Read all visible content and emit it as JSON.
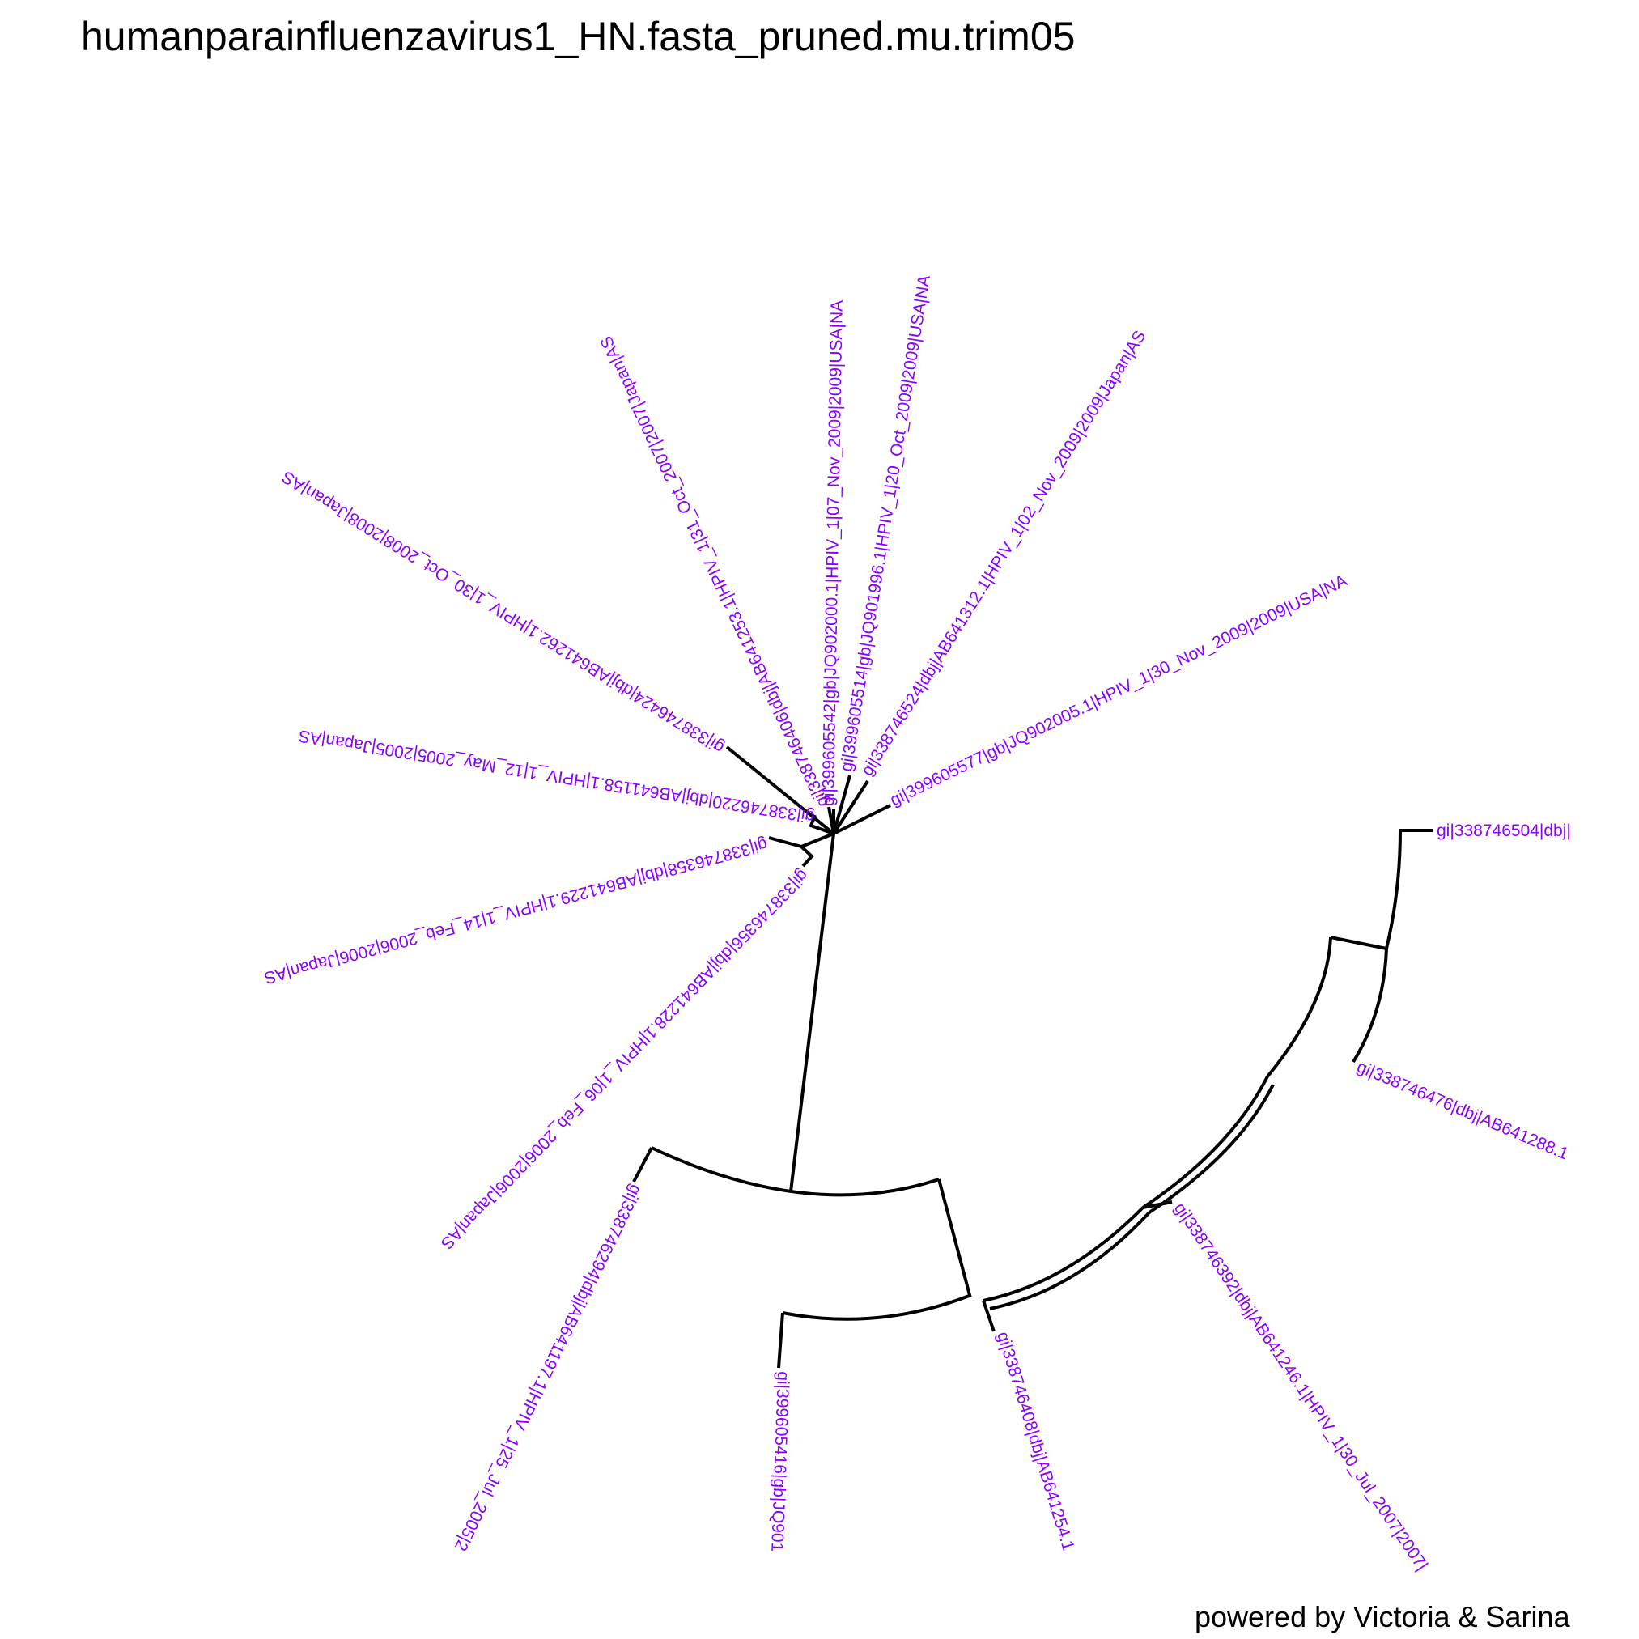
{
  "title": "humanparainfluenzavirus1_HN.fasta_pruned.mu.trim05",
  "footer": "powered by Victoria & Sarina",
  "colors": {
    "tip_label": "#8B00FF",
    "branch": "#000000",
    "background": "#FFFFFF"
  },
  "tips": [
    "gi|338746504|dbj|",
    "gi|338746476|dbj|AB641288.1",
    "gi|338746392|dbj|AB641246.1|HPIV_1|30_Jul_2007|2007|",
    "gi|338746408|dbj|AB641254.1",
    "gi|399605416|gb|JQ901",
    "gi|338746294|dbj|AB641197.1|HPIV_1|25_Jul_2005|2",
    "gi|338746356|dbj|AB641228.1|HPIV_1|06_Feb_2006|2006|Japan|AS",
    "gi|338746358|dbj|AB641229.1|HPIV_1|14_Feb_2006|2006|Japan|AS",
    "gi|338746220|dbj|AB641158.1|HPIV_1|12_May_2005|2005|Japan|AS",
    "gi|338746424|dbj|AB641262.1|HPIV_1|30_Oct_2008|2008|Japan|AS",
    "gi|338746406|dbj|AB641253.1|HPIV_1|31_Oct_2007|2007|Japan|AS",
    "gi|399605542|gb|JQ902000.1|HPIV_1|07_Nov_2009|2009|USA|NA",
    "gi|399605514|gb|JQ901996.1|HPIV_1|20_Oct_2009|2009|USA|NA",
    "gi|338746524|dbj|AB641312.1|HPIV_1|02_Nov_2009|2009|Japan|AS",
    "gi|399605577|gb|JQ902005.1|HPIV_1|30_Nov_2009|2009|USA|NA"
  ]
}
